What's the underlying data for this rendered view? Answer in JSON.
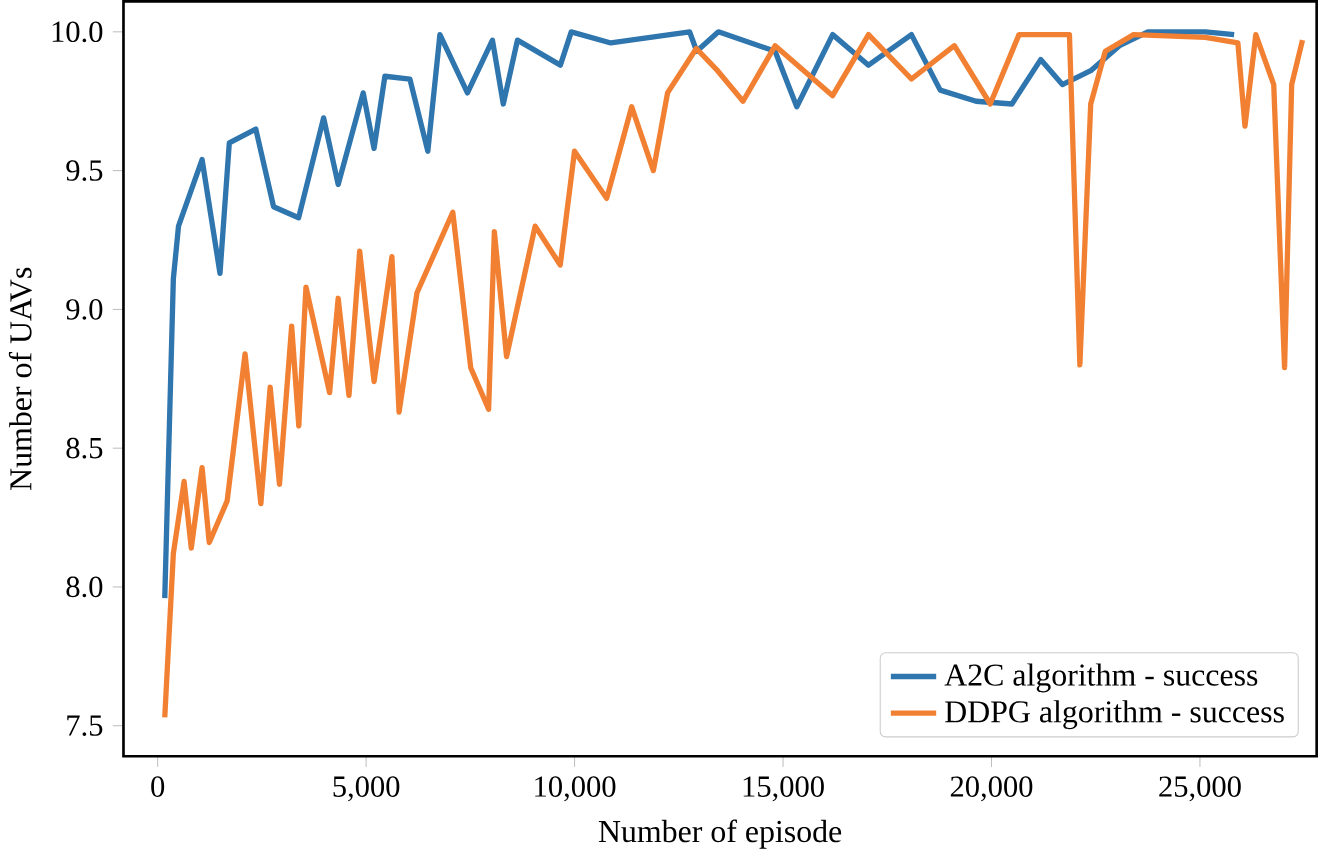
{
  "chart_data": {
    "type": "line",
    "xlabel": "Number of episode",
    "ylabel": "Number of UAVs",
    "xlim": [
      -820,
      27800
    ],
    "ylim": [
      7.39,
      10.11
    ],
    "xticks": [
      {
        "value": 0,
        "label": "0"
      },
      {
        "value": 5000,
        "label": "5,000"
      },
      {
        "value": 10000,
        "label": "10,000"
      },
      {
        "value": 15000,
        "label": "15,000"
      },
      {
        "value": 20000,
        "label": "20,000"
      },
      {
        "value": 25000,
        "label": "25,000"
      }
    ],
    "yticks": [
      {
        "value": 7.5,
        "label": "7.5"
      },
      {
        "value": 8.0,
        "label": "8.0"
      },
      {
        "value": 8.5,
        "label": "8.5"
      },
      {
        "value": 9.0,
        "label": "9.0"
      },
      {
        "value": 9.5,
        "label": "9.5"
      },
      {
        "value": 10.0,
        "label": "10.0"
      }
    ],
    "legend": "bottom right",
    "grid": false,
    "marker": "none",
    "line_style": "solid",
    "series": [
      {
        "name": "A2C algorithm - success",
        "color": "#2f75ae",
        "x": [
          170,
          376,
          500,
          1065,
          1495,
          1718,
          2354,
          2780,
          3380,
          3980,
          4330,
          4930,
          5190,
          5450,
          6050,
          6480,
          6770,
          7430,
          8030,
          8290,
          8630,
          9660,
          9920,
          10870,
          12760,
          12930,
          13450,
          14810,
          15330,
          16190,
          17050,
          18080,
          18770,
          19630,
          20490,
          21180,
          21700,
          22380,
          23070,
          23750,
          25130,
          25820
        ],
        "values": [
          7.96,
          9.11,
          9.3,
          9.54,
          9.13,
          9.6,
          9.65,
          9.37,
          9.33,
          9.69,
          9.45,
          9.78,
          9.58,
          9.84,
          9.83,
          9.57,
          9.99,
          9.78,
          9.97,
          9.74,
          9.97,
          9.88,
          10.0,
          9.96,
          10.0,
          9.93,
          10.0,
          9.93,
          9.73,
          9.99,
          9.88,
          9.99,
          9.79,
          9.75,
          9.74,
          9.9,
          9.81,
          9.86,
          9.95,
          10.0,
          10.0,
          9.99
        ]
      },
      {
        "name": "DDPG algorithm - success",
        "color": "#f28032",
        "x": [
          170,
          376,
          634,
          806,
          1065,
          1237,
          1667,
          2096,
          2475,
          2698,
          2922,
          3214,
          3385,
          3557,
          4124,
          4330,
          4588,
          4845,
          5190,
          5619,
          5790,
          6220,
          7079,
          7509,
          7938,
          8076,
          8368,
          9055,
          9656,
          9999,
          10770,
          11370,
          11890,
          12230,
          12920,
          13430,
          14040,
          14810,
          16190,
          17050,
          18080,
          19110,
          19970,
          20660,
          21870,
          22120,
          22380,
          22730,
          23410,
          25130,
          25910,
          26080,
          26340,
          26770,
          27030,
          27200,
          27460
        ],
        "values": [
          7.53,
          8.12,
          8.38,
          8.14,
          8.43,
          8.16,
          8.31,
          8.84,
          8.3,
          8.72,
          8.37,
          8.94,
          8.58,
          9.08,
          8.7,
          9.04,
          8.69,
          9.21,
          8.74,
          9.19,
          8.63,
          9.06,
          9.35,
          8.79,
          8.64,
          9.28,
          8.83,
          9.3,
          9.16,
          9.57,
          9.4,
          9.73,
          9.5,
          9.78,
          9.94,
          9.86,
          9.75,
          9.95,
          9.77,
          9.99,
          9.83,
          9.95,
          9.74,
          9.99,
          9.99,
          8.8,
          9.74,
          9.93,
          9.99,
          9.98,
          9.96,
          9.66,
          9.99,
          9.81,
          8.79,
          9.81,
          9.97
        ]
      }
    ]
  }
}
